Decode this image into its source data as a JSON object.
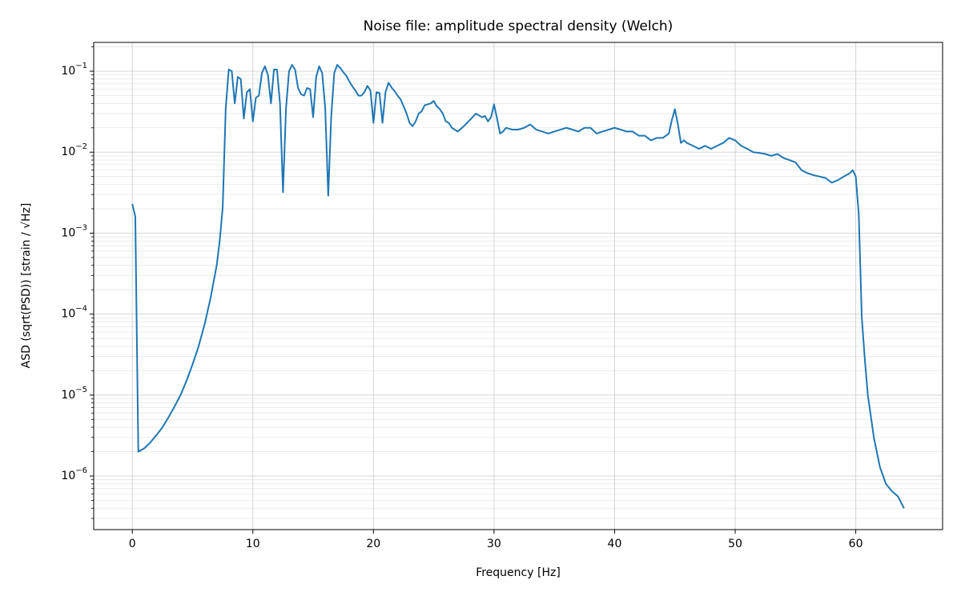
{
  "chart_data": {
    "type": "line",
    "title": "Noise file: amplitude spectral density (Welch)",
    "xlabel": "Frequency [Hz]",
    "ylabel": "ASD (sqrt(PSD)) [strain / √Hz]",
    "yscale": "log",
    "grid": true,
    "color": "#1f77b4",
    "xlim": [
      -3.2,
      67.2
    ],
    "xticks": [
      0,
      10,
      20,
      30,
      40,
      50,
      60
    ],
    "ylim": [
      2.18e-07,
      0.227
    ],
    "yticks": [
      {
        "value": 1e-06,
        "label": "10−6"
      },
      {
        "value": 1e-05,
        "label": "10−5"
      },
      {
        "value": 0.0001,
        "label": "10−4"
      },
      {
        "value": 0.001,
        "label": "10−3"
      },
      {
        "value": 0.01,
        "label": "10−2"
      },
      {
        "value": 0.1,
        "label": "10−1"
      }
    ],
    "yminorticks": [
      3e-07,
      4e-07,
      5e-07,
      6e-07,
      7e-07,
      8e-07,
      9e-07,
      2e-06,
      3e-06,
      4e-06,
      5e-06,
      6e-06,
      7e-06,
      8e-06,
      9e-06,
      2e-05,
      3e-05,
      4e-05,
      5e-05,
      6e-05,
      7e-05,
      8e-05,
      9e-05,
      0.0002,
      0.0003,
      0.0004,
      0.0005,
      0.0006,
      0.0007,
      0.0008,
      0.0009,
      0.002,
      0.003,
      0.004,
      0.005,
      0.006,
      0.007,
      0.008,
      0.009,
      0.02,
      0.03,
      0.04,
      0.05,
      0.06,
      0.07,
      0.08,
      0.09,
      0.2
    ],
    "x": [
      0,
      0.25,
      0.5,
      1,
      1.5,
      2,
      2.5,
      3,
      3.5,
      4,
      4.5,
      5,
      5.5,
      6,
      6.5,
      7,
      7.25,
      7.5,
      7.75,
      8,
      8.25,
      8.5,
      8.75,
      9,
      9.25,
      9.5,
      9.75,
      10,
      10.25,
      10.5,
      10.75,
      11,
      11.25,
      11.5,
      11.75,
      12,
      12.25,
      12.5,
      12.75,
      13,
      13.25,
      13.5,
      13.75,
      14,
      14.25,
      14.5,
      14.75,
      15,
      15.25,
      15.5,
      15.75,
      16,
      16.25,
      16.5,
      16.75,
      17,
      17.25,
      17.5,
      17.75,
      18,
      18.25,
      18.5,
      18.75,
      19,
      19.25,
      19.5,
      19.75,
      20,
      20.25,
      20.5,
      20.75,
      21,
      21.25,
      21.5,
      21.75,
      22,
      22.25,
      22.5,
      22.75,
      23,
      23.25,
      23.5,
      23.75,
      24,
      24.25,
      24.5,
      24.75,
      25,
      25.25,
      25.5,
      25.75,
      26,
      26.25,
      26.5,
      27,
      27.5,
      28,
      28.5,
      29,
      29.25,
      29.5,
      29.75,
      30,
      30.25,
      30.5,
      30.75,
      31,
      31.5,
      32,
      32.5,
      33,
      33.5,
      34,
      34.5,
      35,
      35.5,
      36,
      36.5,
      37,
      37.5,
      38,
      38.5,
      39,
      39.5,
      40,
      40.5,
      41,
      41.5,
      42,
      42.5,
      43,
      43.5,
      44,
      44.5,
      44.75,
      45,
      45.25,
      45.5,
      45.75,
      46,
      46.5,
      47,
      47.5,
      48,
      48.5,
      49,
      49.5,
      50,
      50.5,
      51,
      51.5,
      52,
      52.5,
      53,
      53.5,
      54,
      54.5,
      55,
      55.5,
      56,
      56.5,
      57,
      57.5,
      58,
      58.5,
      59,
      59.5,
      59.75,
      60,
      60.25,
      60.5,
      60.75,
      61,
      61.5,
      62,
      62.5,
      63,
      63.5,
      64
    ],
    "values": [
      0.0023,
      0.0016,
      2e-06,
      2.2e-06,
      2.6e-06,
      3.2e-06,
      4e-06,
      5.3e-06,
      7.2e-06,
      1e-05,
      1.5e-05,
      2.4e-05,
      4e-05,
      7.5e-05,
      0.00016,
      0.0004,
      0.0008,
      0.0021,
      0.035,
      0.105,
      0.1,
      0.04,
      0.085,
      0.08,
      0.026,
      0.055,
      0.06,
      0.024,
      0.047,
      0.05,
      0.095,
      0.115,
      0.09,
      0.04,
      0.105,
      0.105,
      0.04,
      0.0032,
      0.035,
      0.1,
      0.12,
      0.105,
      0.062,
      0.052,
      0.05,
      0.062,
      0.06,
      0.027,
      0.085,
      0.115,
      0.095,
      0.035,
      0.0029,
      0.028,
      0.095,
      0.12,
      0.11,
      0.097,
      0.088,
      0.075,
      0.065,
      0.058,
      0.05,
      0.05,
      0.055,
      0.066,
      0.058,
      0.023,
      0.055,
      0.054,
      0.023,
      0.055,
      0.072,
      0.063,
      0.057,
      0.05,
      0.045,
      0.037,
      0.03,
      0.023,
      0.021,
      0.024,
      0.03,
      0.032,
      0.038,
      0.039,
      0.04,
      0.043,
      0.037,
      0.034,
      0.03,
      0.024,
      0.023,
      0.02,
      0.018,
      0.021,
      0.025,
      0.03,
      0.027,
      0.028,
      0.024,
      0.027,
      0.039,
      0.026,
      0.017,
      0.018,
      0.02,
      0.019,
      0.019,
      0.02,
      0.022,
      0.019,
      0.018,
      0.017,
      0.018,
      0.019,
      0.02,
      0.019,
      0.018,
      0.02,
      0.02,
      0.017,
      0.018,
      0.019,
      0.02,
      0.019,
      0.018,
      0.018,
      0.016,
      0.016,
      0.014,
      0.015,
      0.015,
      0.017,
      0.025,
      0.034,
      0.022,
      0.013,
      0.014,
      0.013,
      0.012,
      0.011,
      0.012,
      0.011,
      0.012,
      0.013,
      0.015,
      0.014,
      0.012,
      0.011,
      0.01,
      0.0098,
      0.0095,
      0.009,
      0.0095,
      0.0085,
      0.008,
      0.0075,
      0.006,
      0.0055,
      0.0052,
      0.005,
      0.0048,
      0.0042,
      0.0045,
      0.005,
      0.0055,
      0.006,
      0.005,
      0.0017,
      9e-05,
      2.8e-05,
      1e-05,
      3e-06,
      1.3e-06,
      8e-07,
      6.5e-07,
      5.6e-07,
      4e-07
    ]
  }
}
